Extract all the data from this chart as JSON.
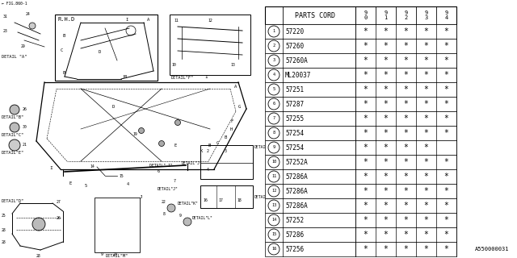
{
  "bg_color": "#ffffff",
  "table_header": "PARTS CORD",
  "year_cols": [
    "9\n0",
    "9\n1",
    "9\n2",
    "9\n3",
    "9\n4"
  ],
  "rows": [
    {
      "num": "1",
      "part": "57220",
      "stars": [
        1,
        1,
        1,
        1,
        1
      ]
    },
    {
      "num": "2",
      "part": "57260",
      "stars": [
        1,
        1,
        1,
        1,
        1
      ]
    },
    {
      "num": "3",
      "part": "57260A",
      "stars": [
        1,
        1,
        1,
        1,
        1
      ]
    },
    {
      "num": "4",
      "part": "ML20037",
      "stars": [
        1,
        1,
        1,
        1,
        1
      ]
    },
    {
      "num": "5",
      "part": "57251",
      "stars": [
        1,
        1,
        1,
        1,
        1
      ]
    },
    {
      "num": "6",
      "part": "57287",
      "stars": [
        1,
        1,
        1,
        1,
        1
      ]
    },
    {
      "num": "7",
      "part": "57255",
      "stars": [
        1,
        1,
        1,
        1,
        1
      ]
    },
    {
      "num": "8",
      "part": "57254",
      "stars": [
        1,
        1,
        1,
        1,
        1
      ]
    },
    {
      "num": "9",
      "part": "57254",
      "stars": [
        1,
        1,
        1,
        1,
        0
      ]
    },
    {
      "num": "10",
      "part": "57252A",
      "stars": [
        1,
        1,
        1,
        1,
        1
      ]
    },
    {
      "num": "11",
      "part": "57286A",
      "stars": [
        1,
        1,
        1,
        1,
        1
      ]
    },
    {
      "num": "12",
      "part": "57286A",
      "stars": [
        1,
        1,
        1,
        1,
        1
      ]
    },
    {
      "num": "13",
      "part": "57286A",
      "stars": [
        1,
        1,
        1,
        1,
        1
      ]
    },
    {
      "num": "14",
      "part": "57252",
      "stars": [
        1,
        1,
        1,
        1,
        1
      ]
    },
    {
      "num": "15",
      "part": "57286",
      "stars": [
        1,
        1,
        1,
        1,
        1
      ]
    },
    {
      "num": "16",
      "part": "57256",
      "stars": [
        1,
        1,
        1,
        1,
        1
      ]
    }
  ],
  "watermark": "A550000031"
}
